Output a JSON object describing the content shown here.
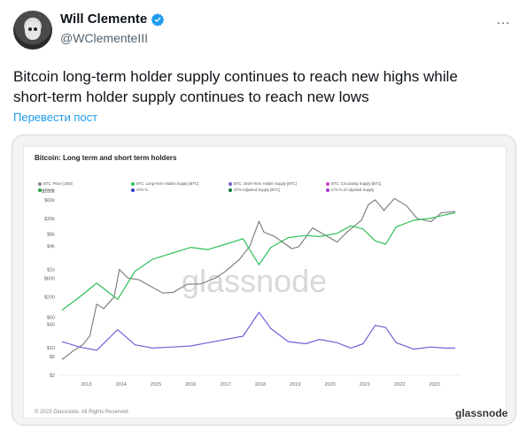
{
  "tweet": {
    "author": {
      "name": "Will Clemente",
      "handle": "@WClementeIII",
      "verified_color": "#1d9bf0"
    },
    "more_icon": "…",
    "text_lines": [
      "Bitcoin long-term holder supply continues to reach new highs while",
      "short-term holder supply continues to reach new lows"
    ],
    "translate_label": "Перевести пост"
  },
  "chart_data": {
    "type": "line",
    "title": "Bitcoin: Long term and short term holders",
    "legend": [
      {
        "name": "BTC: Price [USD]",
        "color": "#888888"
      },
      {
        "name": "BTC: Long-Term Holder Supply [BTC]",
        "color": "#2fbf5a"
      },
      {
        "name": "BTC: Short-Term Holder Supply [BTC]",
        "color": "#6f63d8"
      },
      {
        "name": "BTC: Circulating Supply [BTC]",
        "color": "#d63cc7"
      },
      {
        "name": "LTH %",
        "color": "#1fa33e"
      },
      {
        "name": "STH %",
        "color": "#3c34c8"
      },
      {
        "name": "STH-Adjusted Supply [BTC]",
        "color": "#0a7a3a"
      },
      {
        "name": "LTH % of Adjusted Supply",
        "color": "#a13cd6"
      }
    ],
    "x_ticks": [
      "2013",
      "2014",
      "2015",
      "2016",
      "2017",
      "2018",
      "2019",
      "2020",
      "2021",
      "2022",
      "2023"
    ],
    "y_left_ticks": [
      "$100k",
      "$60k",
      "$20k",
      "$8k",
      "$4k",
      "$1k",
      "$600",
      "$200",
      "$60",
      "$40",
      "$10",
      "$6",
      "$2"
    ],
    "y_right_ticks": [
      "15M",
      "10M",
      "5M",
      "0"
    ],
    "watermark": "glassnode",
    "series": [
      {
        "name": "BTC: Price [USD]",
        "x": [
          2012.3,
          2012.6,
          2012.9,
          2013.1,
          2013.3,
          2013.5,
          2013.8,
          2013.95,
          2014.2,
          2014.5,
          2014.9,
          2015.2,
          2015.5,
          2015.9,
          2016.3,
          2016.7,
          2017.0,
          2017.4,
          2017.7,
          2017.96,
          2018.1,
          2018.4,
          2018.9,
          2019.1,
          2019.5,
          2019.9,
          2020.2,
          2020.5,
          2020.9,
          2021.1,
          2021.3,
          2021.55,
          2021.85,
          2022.2,
          2022.5,
          2022.9,
          2023.2,
          2023.6
        ],
        "values": [
          5,
          8,
          12,
          20,
          130,
          100,
          200,
          1000,
          600,
          550,
          350,
          250,
          260,
          420,
          430,
          600,
          900,
          1800,
          4000,
          17000,
          9000,
          7000,
          3400,
          3800,
          11500,
          7200,
          5000,
          9200,
          18000,
          45000,
          60000,
          32000,
          65000,
          42000,
          20000,
          16500,
          28000,
          30000
        ]
      },
      {
        "name": "BTC: Long-Term Holder Supply [BTC]",
        "x": [
          2012.3,
          2012.8,
          2013.3,
          2013.9,
          2014.4,
          2014.9,
          2015.5,
          2016.0,
          2016.5,
          2017.0,
          2017.5,
          2017.96,
          2018.3,
          2018.8,
          2019.3,
          2019.7,
          2020.2,
          2020.6,
          2020.95,
          2021.3,
          2021.6,
          2021.9,
          2022.4,
          2022.9,
          2023.3,
          2023.6
        ],
        "values": [
          6.0,
          7.2,
          8.5,
          7.0,
          9.6,
          10.7,
          11.3,
          11.8,
          11.6,
          12.1,
          12.6,
          10.2,
          11.8,
          12.7,
          12.9,
          12.8,
          13.1,
          13.8,
          13.5,
          12.4,
          12.1,
          13.7,
          14.3,
          14.5,
          14.8,
          15.0
        ]
      },
      {
        "name": "BTC: Short-Term Holder Supply [BTC]",
        "x": [
          2012.3,
          2012.8,
          2013.3,
          2013.9,
          2014.4,
          2014.9,
          2015.5,
          2016.0,
          2016.5,
          2017.0,
          2017.5,
          2017.96,
          2018.3,
          2018.8,
          2019.3,
          2019.7,
          2020.2,
          2020.6,
          2020.95,
          2021.3,
          2021.6,
          2021.9,
          2022.4,
          2022.9,
          2023.3,
          2023.6
        ],
        "values": [
          3.1,
          2.6,
          2.3,
          4.2,
          2.8,
          2.5,
          2.6,
          2.7,
          3.0,
          3.3,
          3.6,
          5.8,
          4.3,
          3.1,
          2.9,
          3.3,
          3.0,
          2.5,
          2.9,
          4.6,
          4.4,
          3.0,
          2.4,
          2.6,
          2.5,
          2.5
        ]
      }
    ],
    "xlim": [
      2012.2,
      2023.75
    ],
    "ylim_left": [
      2,
      100000
    ],
    "ylim_right": [
      0,
      17000000
    ],
    "left_scale": "log",
    "grid": false
  },
  "footer": {
    "copyright": "© 2023 Glassnode. All Rights Reserved.",
    "brand": "glassnode"
  }
}
